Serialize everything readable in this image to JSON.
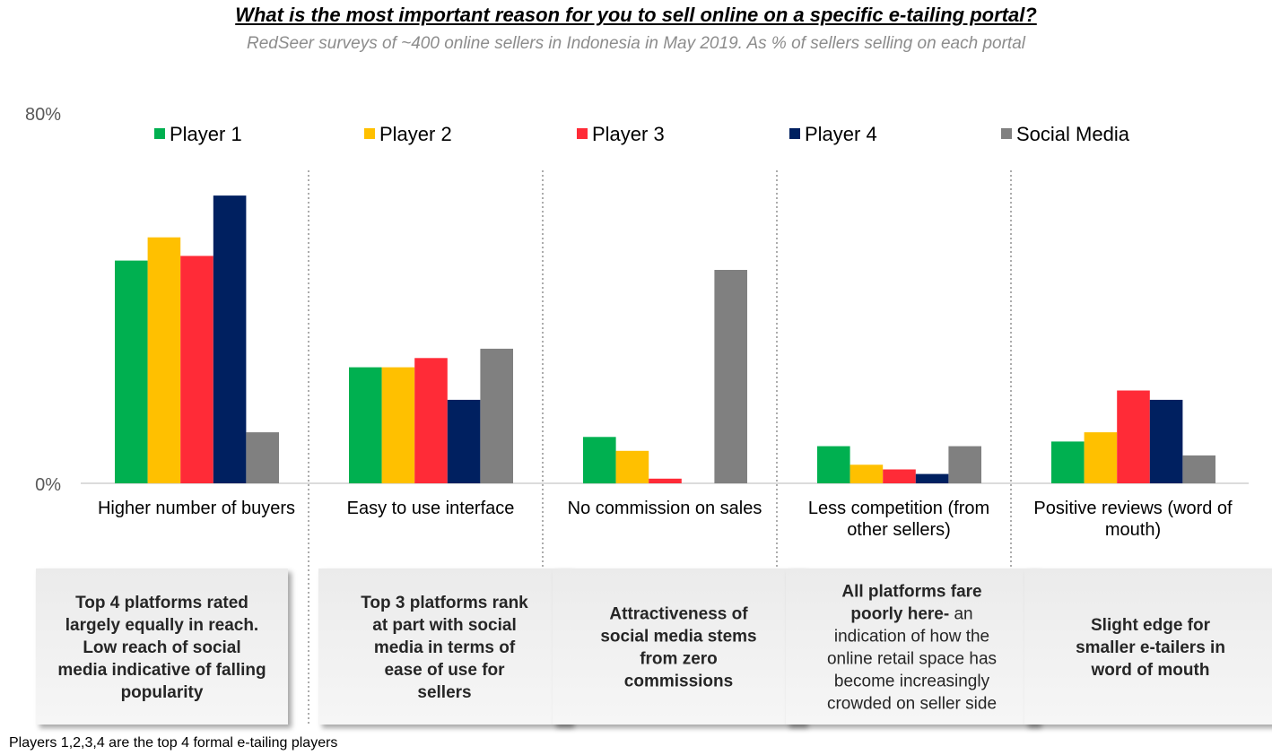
{
  "title": "What is the most important reason for you to sell online on a specific e-tailing portal?",
  "subtitle": "RedSeer surveys of ~400 online sellers in Indonesia in May 2019. As % of sellers selling on each portal",
  "footnote": "Players 1,2,3,4 are the top 4 formal e-tailing players",
  "chart_data": {
    "type": "bar",
    "y_ticks": [
      "80%",
      "0%"
    ],
    "ylim": [
      0,
      80
    ],
    "grid": false,
    "legend_position": "top",
    "categories": [
      [
        "Higher number of buyers"
      ],
      [
        "Easy to use interface"
      ],
      [
        "No commission on sales"
      ],
      [
        "Less competition (from",
        "other sellers)"
      ],
      [
        "Positive reviews (word of",
        "mouth)"
      ]
    ],
    "series": [
      {
        "name": "Player 1",
        "color": "#00b050",
        "values": [
          48,
          25,
          10,
          8,
          9
        ]
      },
      {
        "name": "Player 2",
        "color": "#ffc000",
        "values": [
          53,
          25,
          7,
          4,
          11
        ]
      },
      {
        "name": "Player 3",
        "color": "#ff2b37",
        "values": [
          49,
          27,
          1,
          3,
          20
        ]
      },
      {
        "name": "Player 4",
        "color": "#002060",
        "values": [
          62,
          18,
          0,
          2,
          18
        ]
      },
      {
        "name": "Social Media",
        "color": "#808080",
        "values": [
          11,
          29,
          46,
          8,
          6
        ]
      }
    ]
  },
  "insights": [
    {
      "segments": [
        {
          "text": "Top 4 platforms rated",
          "bold": true,
          "br": true
        },
        {
          "text": "largely equally in reach.",
          "bold": true,
          "br": true
        },
        {
          "text": "Low reach of social",
          "bold": true,
          "br": true
        },
        {
          "text": "media indicative of falling",
          "bold": true,
          "br": true
        },
        {
          "text": "popularity",
          "bold": true
        }
      ]
    },
    {
      "segments": [
        {
          "text": "Top 3 platforms rank",
          "bold": true,
          "br": true
        },
        {
          "text": "at part with social",
          "bold": true,
          "br": true
        },
        {
          "text": "media in terms of",
          "bold": true,
          "br": true
        },
        {
          "text": "ease of use for",
          "bold": true,
          "br": true
        },
        {
          "text": "sellers",
          "bold": true
        }
      ]
    },
    {
      "segments": [
        {
          "text": "Attractiveness of",
          "bold": true,
          "br": true
        },
        {
          "text": "social media stems",
          "bold": true,
          "br": true
        },
        {
          "text": "from zero",
          "bold": true,
          "br": true
        },
        {
          "text": "commissions",
          "bold": true
        }
      ]
    },
    {
      "segments": [
        {
          "text": "All platforms fare",
          "bold": true,
          "br": true
        },
        {
          "text": "poorly here-",
          "bold": true
        },
        {
          "text": " an",
          "bold": false,
          "br": true
        },
        {
          "text": "indication of how the",
          "bold": false,
          "br": true
        },
        {
          "text": "online retail space has",
          "bold": false,
          "br": true
        },
        {
          "text": "become increasingly",
          "bold": false,
          "br": true
        },
        {
          "text": "crowded on seller side",
          "bold": false
        }
      ]
    },
    {
      "segments": [
        {
          "text": "Slight edge for",
          "bold": true,
          "br": true
        },
        {
          "text": "smaller e-tailers in",
          "bold": true,
          "br": true
        },
        {
          "text": "word of mouth",
          "bold": true
        }
      ]
    }
  ]
}
